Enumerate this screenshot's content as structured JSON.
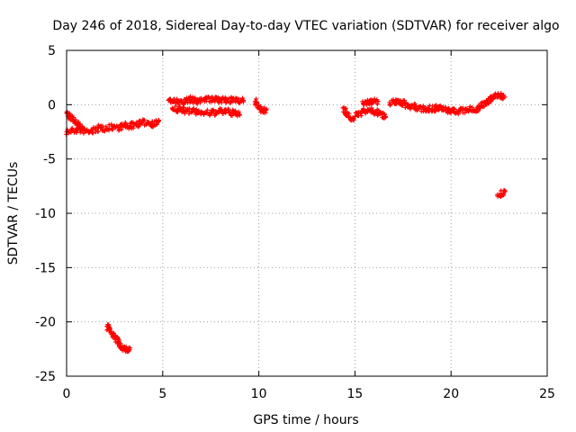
{
  "chart_data": {
    "type": "scatter",
    "title": "Day 246 of 2018, Sidereal Day-to-day VTEC variation (SDTVAR) for receiver algo",
    "xlabel": "GPS time / hours",
    "ylabel": "SDTVAR / TECUs",
    "xlim": [
      0,
      25
    ],
    "ylim": [
      -25,
      5
    ],
    "x_ticks": [
      0,
      5,
      10,
      15,
      20,
      25
    ],
    "y_ticks": [
      -25,
      -20,
      -15,
      -10,
      -5,
      0,
      5
    ],
    "x_tick_labels": [
      "0",
      "5",
      "10",
      "15",
      "20",
      "25"
    ],
    "y_tick_labels": [
      "-25",
      "-20",
      "-15",
      "-10",
      "-5",
      "0",
      "5"
    ],
    "grid": true,
    "marker": "plus",
    "series": [
      {
        "name": "SDTVAR",
        "color": "#ff0000",
        "segments": [
          {
            "x": [
              0.0,
              0.3,
              0.6,
              0.9,
              1.2,
              1.5,
              1.8,
              2.1,
              2.4,
              2.7,
              3.0,
              3.3,
              3.6,
              3.9,
              4.2,
              4.5,
              4.8
            ],
            "y": [
              -2.5,
              -2.4,
              -2.3,
              -2.4,
              -2.5,
              -2.3,
              -2.1,
              -2.2,
              -2.0,
              -2.1,
              -1.9,
              -2.0,
              -1.8,
              -1.7,
              -1.6,
              -1.8,
              -1.5
            ]
          },
          {
            "x": [
              0.0,
              0.2,
              0.4,
              0.6,
              0.8
            ],
            "y": [
              -0.8,
              -1.2,
              -1.5,
              -1.9,
              -2.2
            ]
          },
          {
            "x": [
              2.1,
              2.3,
              2.5,
              2.7,
              2.9,
              3.1,
              3.3
            ],
            "y": [
              -20.4,
              -20.9,
              -21.4,
              -21.9,
              -22.4,
              -22.6,
              -22.4
            ]
          },
          {
            "x": [
              5.3,
              5.6,
              6.0,
              6.4,
              6.8,
              7.2,
              7.6,
              8.0,
              8.4,
              8.8,
              9.2
            ],
            "y": [
              0.4,
              0.3,
              0.2,
              0.5,
              0.3,
              0.6,
              0.4,
              0.5,
              0.3,
              0.5,
              0.4
            ]
          },
          {
            "x": [
              5.5,
              6.0,
              6.5,
              7.0,
              7.5,
              8.0,
              8.5,
              9.0
            ],
            "y": [
              -0.4,
              -0.5,
              -0.6,
              -0.7,
              -0.8,
              -0.6,
              -0.7,
              -0.9
            ]
          },
          {
            "x": [
              9.8,
              10.0,
              10.2,
              10.4
            ],
            "y": [
              0.3,
              -0.2,
              -0.6,
              -0.4
            ]
          },
          {
            "x": [
              14.4,
              14.6,
              14.8,
              15.0,
              15.2,
              15.5,
              15.8,
              16.1,
              16.4,
              16.6
            ],
            "y": [
              -0.3,
              -0.9,
              -1.3,
              -1.1,
              -0.8,
              -0.6,
              -0.5,
              -0.7,
              -0.9,
              -1.1
            ]
          },
          {
            "x": [
              15.4,
              15.8,
              16.2
            ],
            "y": [
              0.3,
              0.2,
              0.3
            ]
          },
          {
            "x": [
              16.8,
              17.3,
              17.8,
              18.3,
              18.8,
              19.3,
              19.8,
              20.3,
              20.8,
              21.3,
              21.6,
              21.9,
              22.2,
              22.5,
              22.8
            ],
            "y": [
              0.2,
              0.3,
              -0.1,
              -0.3,
              -0.4,
              -0.3,
              -0.5,
              -0.6,
              -0.5,
              -0.4,
              -0.1,
              0.3,
              0.8,
              0.9,
              0.7
            ]
          },
          {
            "x": [
              22.4,
              22.6,
              22.8
            ],
            "y": [
              -8.3,
              -8.2,
              -8.0
            ]
          }
        ]
      }
    ]
  }
}
